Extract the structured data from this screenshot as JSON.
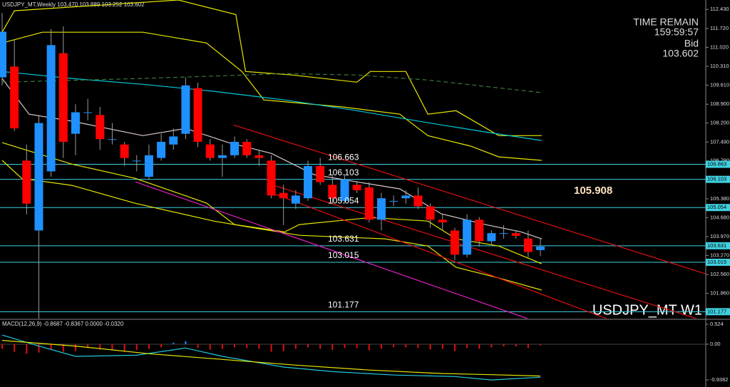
{
  "chart_data": [
    {
      "type": "candlestick",
      "title": "USDJPY_MT,Weekly 103.470 103.889 103.252 103.602",
      "up_color": "#1e90ff",
      "down_color": "#ff0000",
      "open": [
        109.9,
        110.3,
        106.8,
        104.2,
        106.4,
        110.8,
        107.8,
        108.6,
        108.5,
        107.6,
        107.4,
        106.8,
        106.2,
        106.9,
        107.4,
        107.8,
        109.5,
        107.4,
        106.9,
        107.0,
        107.5,
        107.0,
        106.8,
        105.6,
        105.2,
        105.4,
        106.6,
        105.9,
        105.3,
        105.9,
        105.8,
        104.6,
        105.3,
        105.4,
        105.5,
        105.1,
        104.6,
        104.2,
        103.3,
        104.6,
        103.8,
        104.1,
        104.1,
        103.9,
        103.47
      ],
      "high": [
        112.3,
        111.3,
        107.4,
        108.5,
        111.7,
        111.8,
        108.9,
        109.1,
        108.8,
        108.2,
        107.5,
        107.0,
        107.4,
        107.8,
        108.0,
        109.9,
        109.7,
        107.6,
        107.4,
        107.7,
        107.6,
        107.2,
        107.0,
        105.9,
        105.7,
        106.8,
        106.9,
        106.3,
        106.3,
        106.0,
        106.0,
        105.6,
        105.5,
        105.7,
        105.8,
        105.2,
        104.8,
        104.3,
        104.8,
        104.7,
        104.2,
        104.4,
        104.2,
        104.2,
        103.889
      ],
      "low": [
        109.6,
        107.9,
        104.8,
        100.9,
        106.2,
        106.9,
        107.0,
        108.3,
        107.2,
        107.4,
        106.6,
        106.4,
        106.1,
        106.8,
        107.2,
        107.6,
        107.3,
        106.8,
        106.2,
        106.9,
        106.9,
        106.6,
        105.4,
        104.4,
        105.0,
        105.3,
        105.9,
        105.2,
        105.2,
        105.6,
        104.5,
        104.2,
        105.1,
        105.2,
        105.0,
        104.3,
        104.2,
        103.1,
        103.2,
        103.6,
        103.7,
        103.9,
        103.9,
        103.2,
        103.252
      ],
      "close": [
        111.6,
        108.0,
        105.2,
        108.2,
        111.1,
        107.5,
        108.6,
        108.6,
        107.6,
        107.6,
        106.9,
        106.8,
        107.0,
        107.5,
        107.7,
        109.6,
        107.5,
        106.9,
        107.0,
        107.5,
        107.0,
        106.9,
        105.5,
        105.4,
        105.5,
        106.6,
        106.0,
        105.4,
        106.1,
        105.7,
        104.6,
        105.4,
        105.3,
        105.5,
        105.1,
        104.6,
        104.5,
        103.3,
        104.6,
        103.8,
        104.1,
        104.1,
        104.0,
        103.4,
        103.602
      ],
      "ylim": [
        100.92,
        112.78
      ],
      "yticks": [
        {
          "value": 112.43,
          "label": "112.430"
        },
        {
          "value": 111.72,
          "label": "111.720"
        },
        {
          "value": 111.02,
          "label": "111.020"
        },
        {
          "value": 110.31,
          "label": "110.310"
        },
        {
          "value": 109.61,
          "label": "109.610"
        },
        {
          "value": 108.9,
          "label": "108.900"
        },
        {
          "value": 108.2,
          "label": "108.200"
        },
        {
          "value": 107.49,
          "label": "107.490"
        },
        {
          "value": 106.79,
          "label": "106.790"
        },
        {
          "value": 105.38,
          "label": "105.380"
        },
        {
          "value": 104.68,
          "label": "104.680"
        },
        {
          "value": 103.97,
          "label": "103.970"
        },
        {
          "value": 103.27,
          "label": "103.270"
        },
        {
          "value": 102.56,
          "label": "102.560"
        },
        {
          "value": 101.86,
          "label": "101.860"
        }
      ],
      "lines": [
        {
          "color": "#e6e600",
          "x": [
            0,
            1,
            14.4,
            19.1,
            19.9,
            23.7,
            29,
            30.1,
            33,
            34.8,
            37.1,
            40.6,
            44.1
          ],
          "values": [
            111.58,
            112.38,
            112.78,
            112.24,
            110.12,
            109.99,
            109.72,
            110.12,
            110.12,
            108.53,
            108.66,
            107.73,
            107.73
          ]
        },
        {
          "color": "#e6e600",
          "x": [
            0,
            3.3,
            11.5,
            16.7,
            19.6,
            21.4,
            27.8,
            32.5,
            34.8,
            38.3,
            40.6,
            44.1
          ],
          "values": [
            111.18,
            111.58,
            111.58,
            111.18,
            110.12,
            109.06,
            108.8,
            108.53,
            107.73,
            107.34,
            106.94,
            106.81
          ]
        },
        {
          "color": "#e6e600",
          "x": [
            0,
            5.7,
            10.9,
            16.7,
            19,
            23.1,
            24.3,
            30.1,
            34.8,
            37.1,
            40.6,
            44.1
          ],
          "values": [
            107.47,
            106.67,
            106.14,
            105.22,
            104.42,
            104.15,
            104.42,
            104.68,
            104.55,
            103.89,
            103.62,
            102.96
          ]
        },
        {
          "color": "#e6e600",
          "x": [
            0,
            1.6,
            5.7,
            10.9,
            17.3,
            20.8,
            22.6,
            24.3,
            31.3,
            34.8,
            37.1,
            40.6,
            44.1
          ],
          "values": [
            106.81,
            106.14,
            105.88,
            105.21,
            104.55,
            104.28,
            104.15,
            104.02,
            103.89,
            103.62,
            102.83,
            102.43,
            101.98
          ]
        },
        {
          "color": "#00c8d8",
          "x": [
            0,
            5.7,
            11.5,
            17.3,
            23.1,
            29,
            34.8,
            40.6,
            44.1
          ],
          "values": [
            110.12,
            109.86,
            109.64,
            109.38,
            109.06,
            108.66,
            108.21,
            107.79,
            107.55
          ]
        },
        {
          "color": "#d8c8c8",
          "x": [
            0,
            2.2,
            5.7,
            11.5,
            15,
            18.5,
            22,
            25.5,
            29,
            32.5,
            35.9,
            39.5,
            42.4,
            44.1
          ],
          "values": [
            109.86,
            108.53,
            108.27,
            107.73,
            108,
            107.47,
            107.07,
            106.28,
            106.01,
            105.75,
            104.82,
            104.42,
            104.15,
            103.89
          ]
        },
        {
          "color": "#3a7a3a",
          "dash": "6 4",
          "x": [
            0,
            11.5,
            23.1,
            29,
            34.8,
            44.1
          ],
          "values": [
            109.72,
            109.86,
            110.04,
            109.99,
            109.8,
            109.33
          ]
        }
      ],
      "trendlines": [
        {
          "color": "#e01010",
          "x": [
            18.9,
            59.5
          ],
          "values": [
            108.13,
            102.3
          ]
        },
        {
          "color": "#e01010",
          "x": [
            21.85,
            56.7
          ],
          "values": [
            105.93,
            100.93
          ]
        },
        {
          "color": "#e01010",
          "x": [
            21.97,
            49.4
          ],
          "values": [
            105.61,
            100.92
          ]
        },
        {
          "color": "#e020c0",
          "x": [
            10.9,
            42.95
          ],
          "values": [
            106.01,
            100.92
          ]
        }
      ],
      "levels": [
        106.663,
        106.103,
        105.054,
        103.631,
        103.015,
        101.177
      ],
      "levels_color": "#40d0e0",
      "price_label": 105.908,
      "time_remain_label": "TIME REMAIN",
      "time_remain": "159:59:57",
      "bid_label": "Bid",
      "bid": 103.602,
      "symbol_label": "USDJPY_MT W1"
    },
    {
      "type": "macd",
      "title": "MACD(12,26,9) -0.8687 -0.8367 0.0000 -0.0320",
      "histogram_color": "#e01010",
      "histogram": [
        -0.12,
        -0.2,
        -0.25,
        -0.22,
        -0.15,
        -0.2,
        -0.18,
        -0.1,
        -0.14,
        -0.16,
        -0.2,
        -0.15,
        -0.12,
        -0.08,
        0.04,
        0.08,
        -0.1,
        -0.14,
        -0.12,
        -0.08,
        -0.1,
        -0.12,
        -0.2,
        -0.18,
        -0.12,
        -0.08,
        -0.12,
        -0.15,
        -0.1,
        -0.1,
        -0.16,
        -0.12,
        -0.08,
        -0.08,
        -0.1,
        -0.14,
        -0.12,
        -0.18,
        -0.1,
        -0.12,
        -0.08,
        -0.06,
        -0.06,
        -0.1,
        -0.032
      ],
      "lines": [
        {
          "color": "#20c8e0",
          "x": [
            0,
            3,
            6,
            11,
            15,
            18,
            23,
            27,
            32,
            37,
            40,
            44
          ],
          "values": [
            0.24,
            -0.05,
            -0.32,
            -0.29,
            -0.1,
            -0.32,
            -0.6,
            -0.72,
            -0.81,
            -0.85,
            -0.94,
            -0.8687
          ]
        },
        {
          "color": "#e6e600",
          "x": [
            0,
            6,
            12,
            18,
            24,
            30,
            36,
            40,
            44
          ],
          "values": [
            0.1,
            -0.05,
            -0.25,
            -0.4,
            -0.55,
            -0.68,
            -0.77,
            -0.8,
            -0.8367
          ]
        }
      ],
      "ylim": [
        -1.125,
        0.636
      ],
      "yticks": [
        0.524,
        {
          "value": 0,
          "label": "0.00"
        },
        -0.9382
      ]
    }
  ]
}
